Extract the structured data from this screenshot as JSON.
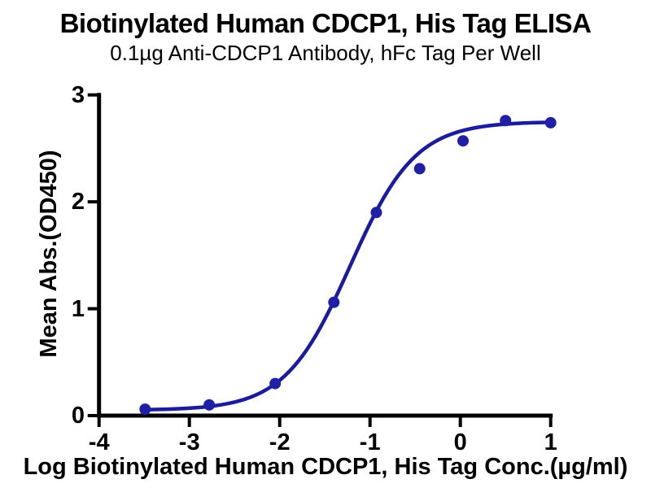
{
  "chart_data": {
    "type": "scatter",
    "title": "Biotinylated Human CDCP1, His Tag ELISA",
    "subtitle": "0.1µg Anti-CDCP1 Antibody, hFc Tag Per Well",
    "xlabel": "Log Biotinylated Human CDCP1, His Tag Conc.(µg/ml)",
    "ylabel": "Mean Abs.(OD450)",
    "xlim": [
      -4,
      1
    ],
    "ylim": [
      0,
      3
    ],
    "xticks": [
      -4,
      -3,
      -2,
      -1,
      0,
      1
    ],
    "xtick_labels": [
      "-4",
      "-3",
      "-2",
      "-1",
      "0",
      "1"
    ],
    "yticks": [
      0,
      1,
      2,
      3
    ],
    "ytick_labels": [
      "0",
      "1",
      "2",
      "3"
    ],
    "grid": false,
    "legend": "none",
    "colors": {
      "curve": "#1b1b9e",
      "point": "#1f1fa8",
      "axis": "#000000",
      "background": "#ffffff"
    },
    "series": [
      {
        "name": "Biotinylated Human CDCP1, His Tag",
        "marker": "filled-circle",
        "points": [
          [
            -3.49,
            0.06
          ],
          [
            -2.78,
            0.1
          ],
          [
            -2.05,
            0.3
          ],
          [
            -1.4,
            1.06
          ],
          [
            -0.93,
            1.9
          ],
          [
            -0.45,
            2.31
          ],
          [
            0.03,
            2.57
          ],
          [
            0.5,
            2.76
          ],
          [
            1.0,
            2.74
          ]
        ],
        "fit_curve_4pl": {
          "bottom": 0.05,
          "top": 2.75,
          "logEC50": -1.22,
          "hill": 1.2
        }
      }
    ]
  }
}
